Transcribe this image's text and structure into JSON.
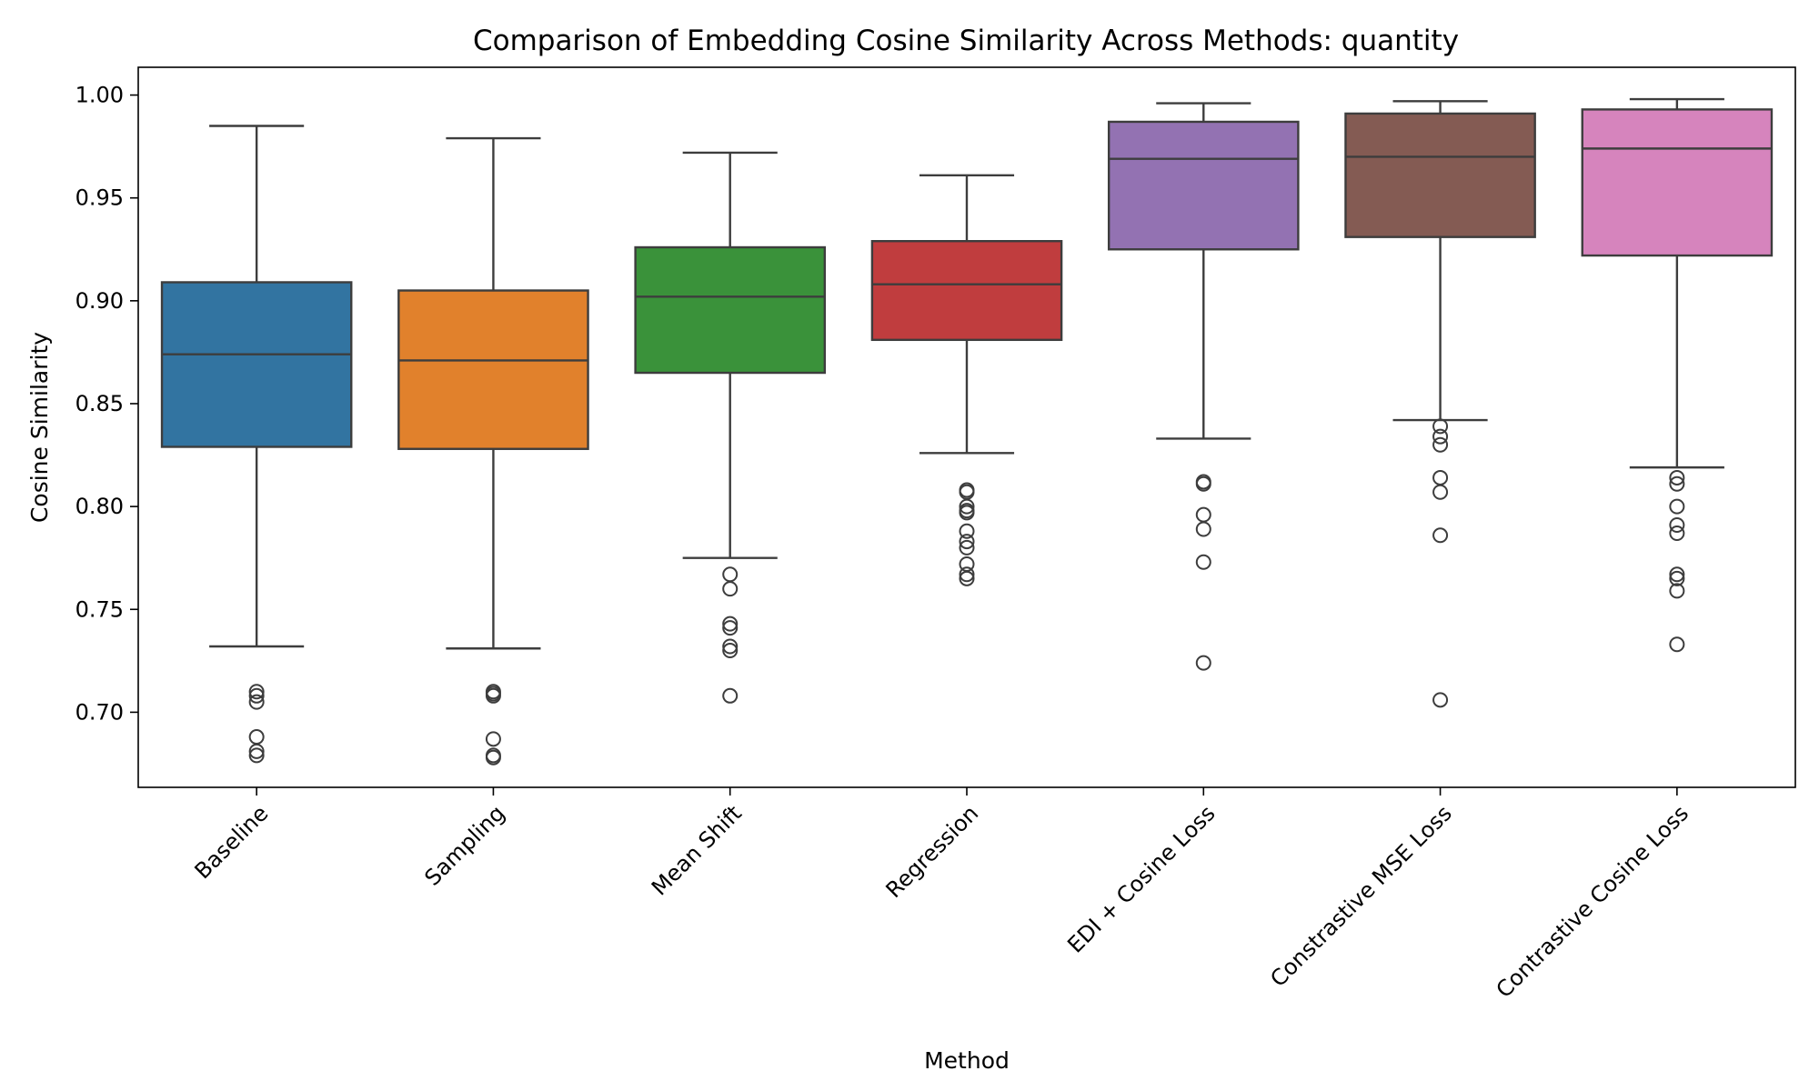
{
  "chart_data": {
    "type": "box",
    "title": "Comparison of Embedding Cosine Similarity Across Methods: quantity",
    "xlabel": "Method",
    "ylabel": "Cosine Similarity",
    "ylim": [
      0.6635,
      1.0135
    ],
    "yticks": [
      0.7,
      0.75,
      0.8,
      0.85,
      0.9,
      0.95,
      1.0
    ],
    "ytick_labels": [
      "0.70",
      "0.75",
      "0.80",
      "0.85",
      "0.90",
      "0.95",
      "1.00"
    ],
    "grid": false,
    "legend": "none",
    "series": [
      {
        "category": "Baseline",
        "color": "#3274a1",
        "whisker_low": 0.732,
        "q1": 0.829,
        "median": 0.874,
        "q3": 0.909,
        "whisker_high": 0.985,
        "outliers": [
          0.71,
          0.708,
          0.705,
          0.688,
          0.681,
          0.679
        ]
      },
      {
        "category": "Sampling",
        "color": "#e1812c",
        "whisker_low": 0.731,
        "q1": 0.828,
        "median": 0.871,
        "q3": 0.905,
        "whisker_high": 0.979,
        "outliers": [
          0.71,
          0.709,
          0.708,
          0.687,
          0.679,
          0.678
        ]
      },
      {
        "category": "Mean Shift",
        "color": "#3a923a",
        "whisker_low": 0.775,
        "q1": 0.865,
        "median": 0.902,
        "q3": 0.926,
        "whisker_high": 0.972,
        "outliers": [
          0.767,
          0.76,
          0.743,
          0.741,
          0.732,
          0.73,
          0.708
        ]
      },
      {
        "category": "Regression",
        "color": "#c03d3e",
        "whisker_low": 0.826,
        "q1": 0.881,
        "median": 0.908,
        "q3": 0.929,
        "whisker_high": 0.961,
        "outliers": [
          0.808,
          0.807,
          0.8,
          0.798,
          0.797,
          0.788,
          0.783,
          0.78,
          0.772,
          0.767,
          0.765
        ]
      },
      {
        "category": "EDI + Cosine Loss",
        "color": "#9372b2",
        "whisker_low": 0.833,
        "q1": 0.925,
        "median": 0.969,
        "q3": 0.987,
        "whisker_high": 0.996,
        "outliers": [
          0.812,
          0.811,
          0.796,
          0.789,
          0.773,
          0.724
        ]
      },
      {
        "category": "Constrastive MSE Loss",
        "color": "#845b53",
        "whisker_low": 0.842,
        "q1": 0.931,
        "median": 0.97,
        "q3": 0.991,
        "whisker_high": 0.997,
        "outliers": [
          0.839,
          0.834,
          0.83,
          0.814,
          0.807,
          0.786,
          0.706
        ]
      },
      {
        "category": "Contrastive Cosine Loss",
        "color": "#d684bd",
        "whisker_low": 0.819,
        "q1": 0.922,
        "median": 0.974,
        "q3": 0.993,
        "whisker_high": 0.998,
        "outliers": [
          0.814,
          0.811,
          0.8,
          0.791,
          0.787,
          0.767,
          0.765,
          0.759,
          0.733
        ]
      }
    ]
  }
}
